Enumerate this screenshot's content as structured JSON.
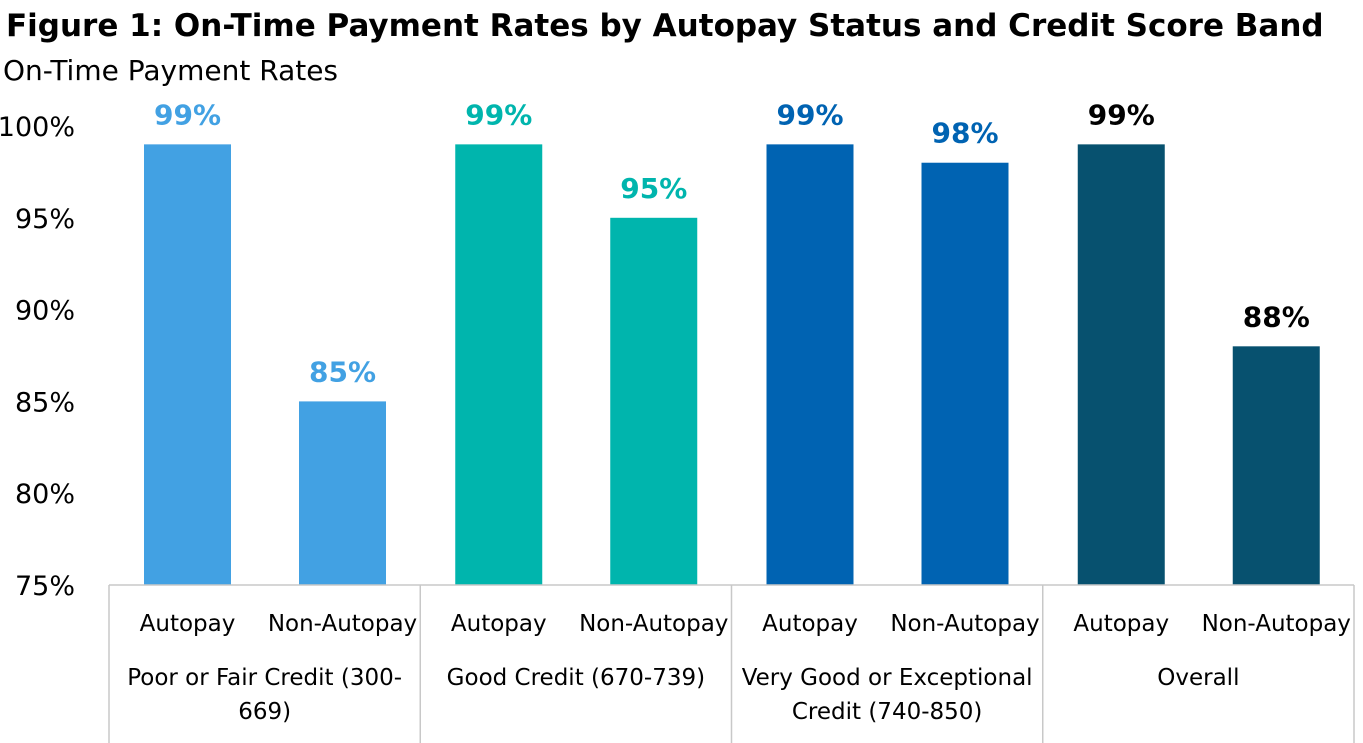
{
  "chart_data": {
    "type": "bar",
    "title": "Figure 1: On-Time Payment Rates by Autopay Status and Credit Score Band",
    "subtitle": "On-Time Payment Rates",
    "ylim": [
      75,
      100
    ],
    "yticks": [
      "100%",
      "95%",
      "90%",
      "85%",
      "80%",
      "75%"
    ],
    "ytick_values": [
      100,
      95,
      90,
      85,
      80,
      75
    ],
    "grid": false,
    "legend": "none",
    "groups": [
      {
        "name_lines": [
          "Poor or Fair Credit (300-",
          "669)"
        ],
        "color": "#42A1E3",
        "bars": [
          {
            "category": "Autopay",
            "value": 99,
            "label": "99%"
          },
          {
            "category": "Non-Autopay",
            "value": 85,
            "label": "85%"
          }
        ]
      },
      {
        "name_lines": [
          "Good Credit (670-739)"
        ],
        "color": "#00B5AD",
        "bars": [
          {
            "category": "Autopay",
            "value": 99,
            "label": "99%"
          },
          {
            "category": "Non-Autopay",
            "value": 95,
            "label": "95%"
          }
        ]
      },
      {
        "name_lines": [
          "Very Good or Exceptional",
          "Credit (740-850)"
        ],
        "color": "#0063B2",
        "bars": [
          {
            "category": "Autopay",
            "value": 99,
            "label": "99%"
          },
          {
            "category": "Non-Autopay",
            "value": 98,
            "label": "98%"
          }
        ]
      },
      {
        "name_lines": [
          "Overall"
        ],
        "color": "#07516F",
        "label_color": "#000000",
        "bars": [
          {
            "category": "Autopay",
            "value": 99,
            "label": "99%"
          },
          {
            "category": "Non-Autopay",
            "value": 88,
            "label": "88%"
          }
        ]
      }
    ]
  }
}
